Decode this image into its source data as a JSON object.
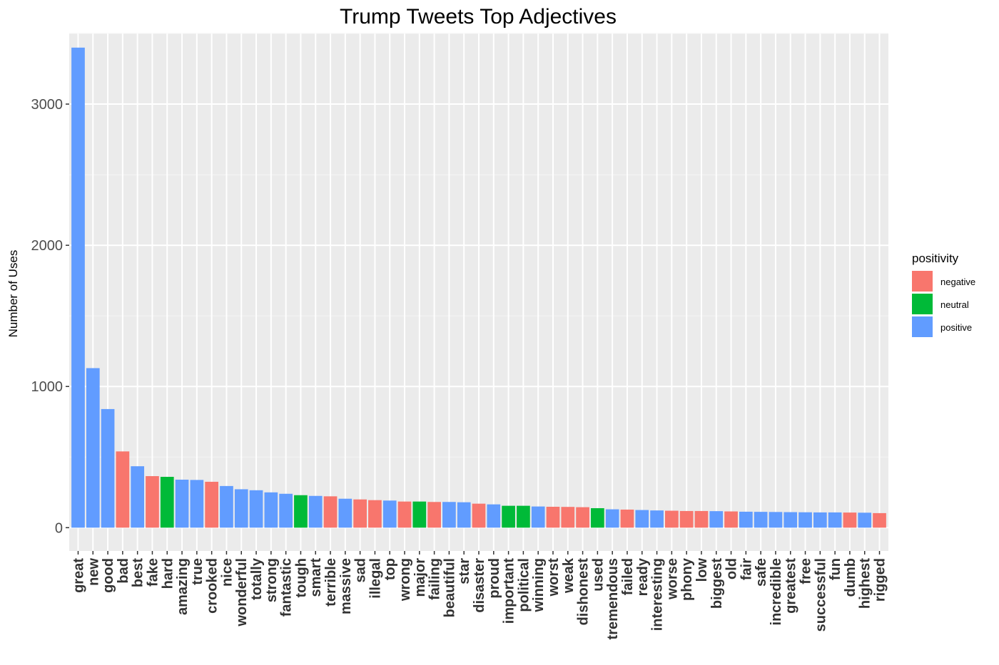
{
  "chart_data": {
    "type": "bar",
    "title": "Trump Tweets Top Adjectives",
    "xlabel": "",
    "ylabel": "Number of Uses",
    "ylim": [
      -165,
      3500
    ],
    "yticks": [
      0,
      1000,
      2000,
      3000
    ],
    "grid": true,
    "legend": {
      "title": "positivity",
      "placement": "right",
      "entries": [
        {
          "name": "negative",
          "color": "#F8766D"
        },
        {
          "name": "neutral",
          "color": "#00BA38"
        },
        {
          "name": "positive",
          "color": "#619CFF"
        }
      ]
    },
    "categories": [
      "great",
      "new",
      "good",
      "bad",
      "best",
      "fake",
      "hard",
      "amazing",
      "true",
      "crooked",
      "nice",
      "wonderful",
      "totally",
      "strong",
      "fantastic",
      "tough",
      "smart",
      "terrible",
      "massive",
      "sad",
      "illegal",
      "top",
      "wrong",
      "major",
      "failing",
      "beautiful",
      "star",
      "disaster",
      "proud",
      "important",
      "political",
      "winning",
      "worst",
      "weak",
      "dishonest",
      "used",
      "tremendous",
      "failed",
      "ready",
      "interesting",
      "worse",
      "phony",
      "low",
      "biggest",
      "old",
      "fair",
      "safe",
      "incredible",
      "greatest",
      "free",
      "successful",
      "fun",
      "dumb",
      "highest",
      "rigged"
    ],
    "values": [
      3400,
      1130,
      840,
      540,
      435,
      365,
      360,
      340,
      338,
      325,
      295,
      272,
      265,
      250,
      240,
      230,
      225,
      222,
      205,
      200,
      195,
      192,
      185,
      185,
      182,
      182,
      180,
      170,
      165,
      155,
      155,
      150,
      148,
      147,
      145,
      138,
      130,
      128,
      125,
      122,
      120,
      118,
      118,
      117,
      115,
      113,
      112,
      111,
      110,
      109,
      108,
      108,
      107,
      106,
      103
    ],
    "positivity": [
      "positive",
      "positive",
      "positive",
      "negative",
      "positive",
      "negative",
      "neutral",
      "positive",
      "positive",
      "negative",
      "positive",
      "positive",
      "positive",
      "positive",
      "positive",
      "neutral",
      "positive",
      "negative",
      "positive",
      "negative",
      "negative",
      "positive",
      "negative",
      "neutral",
      "negative",
      "positive",
      "positive",
      "negative",
      "positive",
      "neutral",
      "neutral",
      "positive",
      "negative",
      "negative",
      "negative",
      "neutral",
      "positive",
      "negative",
      "positive",
      "positive",
      "negative",
      "negative",
      "negative",
      "positive",
      "negative",
      "positive",
      "positive",
      "positive",
      "positive",
      "positive",
      "positive",
      "positive",
      "negative",
      "positive",
      "negative"
    ]
  }
}
